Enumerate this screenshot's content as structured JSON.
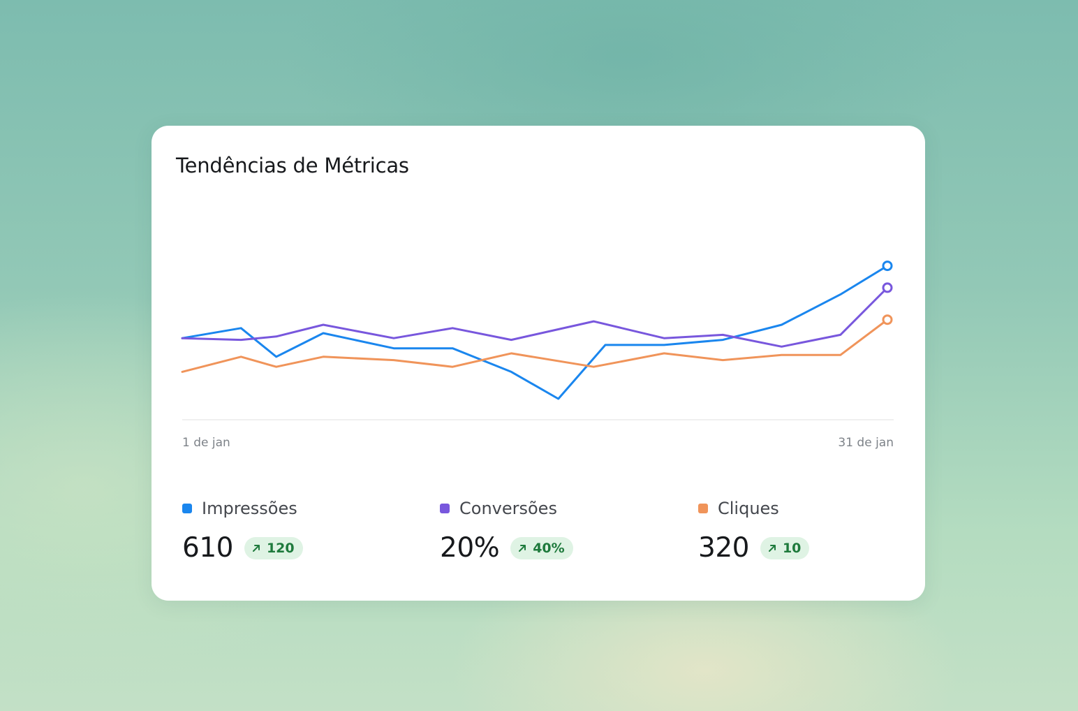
{
  "card": {
    "title": "Tendências de Métricas"
  },
  "chart_data": {
    "type": "line",
    "title": "Tendências de Métricas",
    "x": [
      1,
      3,
      5,
      7,
      9,
      11,
      13,
      16,
      19,
      21,
      23,
      25,
      27,
      31
    ],
    "x_tick_labels": [
      "1 de jan",
      "31 de jan"
    ],
    "ylim": [
      0,
      100
    ],
    "grid": false,
    "legend_placement": "bottom",
    "series": [
      {
        "name": "Impressões",
        "color": "#1a86ee",
        "values": [
          36,
          42,
          25,
          39,
          30,
          30,
          16,
          0,
          32,
          32,
          35,
          44,
          62,
          79
        ],
        "x": [
          1,
          3.5,
          5,
          7,
          10,
          12.5,
          15,
          17,
          19,
          21.5,
          24,
          26.5,
          29,
          31
        ],
        "end_marker": true
      },
      {
        "name": "Conversões",
        "color": "#7857dd",
        "values": [
          36,
          35,
          37,
          44,
          36,
          42,
          35,
          46,
          36,
          38,
          31,
          38,
          66
        ],
        "x": [
          1,
          3.5,
          5,
          7,
          10,
          12.5,
          15,
          18.5,
          21.5,
          24,
          26.5,
          29,
          31
        ],
        "end_marker": true
      },
      {
        "name": "Cliques",
        "color": "#f0945a",
        "values": [
          16,
          25,
          19,
          25,
          23,
          19,
          27,
          19,
          27,
          23,
          26,
          26,
          47
        ],
        "x": [
          1,
          3.5,
          5,
          7,
          10,
          12.5,
          15,
          18.5,
          21.5,
          24,
          26.5,
          29,
          31
        ],
        "end_marker": true
      }
    ]
  },
  "legend": [
    {
      "name": "Impressões",
      "color": "#1a86ee",
      "value": "610",
      "delta": "120",
      "trend": "up"
    },
    {
      "name": "Conversões",
      "color": "#7857dd",
      "value": "20%",
      "delta": "40%",
      "trend": "up"
    },
    {
      "name": "Cliques",
      "color": "#f0945a",
      "value": "320",
      "delta": "10",
      "trend": "up"
    }
  ],
  "icons": {
    "trend_up": "arrow-up-right-icon"
  }
}
